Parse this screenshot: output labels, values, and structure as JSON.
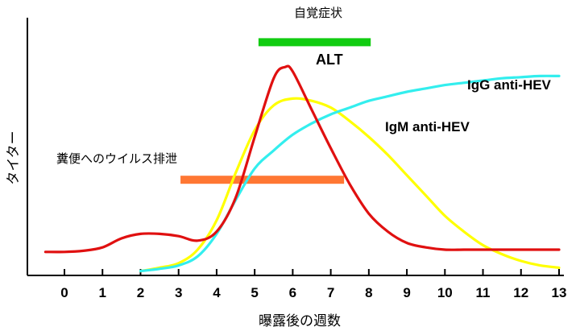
{
  "chart_data": {
    "type": "line",
    "xlabel": "曝露後の週数",
    "ylabel": "タイター",
    "xlim": [
      -1,
      13
    ],
    "ylim": [
      0,
      100
    ],
    "x_ticks": [
      0,
      1,
      2,
      3,
      4,
      5,
      6,
      7,
      8,
      9,
      10,
      11,
      12,
      13
    ],
    "series": [
      {
        "name": "ALT",
        "color": "#e01010",
        "points": [
          [
            -0.5,
            9
          ],
          [
            0,
            9
          ],
          [
            0.5,
            9.5
          ],
          [
            1,
            11
          ],
          [
            1.5,
            15
          ],
          [
            2,
            17
          ],
          [
            2.5,
            17
          ],
          [
            3,
            16
          ],
          [
            3.5,
            14
          ],
          [
            4,
            18
          ],
          [
            4.5,
            33
          ],
          [
            5,
            60
          ],
          [
            5.5,
            86
          ],
          [
            5.8,
            91
          ],
          [
            6,
            89
          ],
          [
            6.5,
            72
          ],
          [
            7,
            55
          ],
          [
            7.5,
            39
          ],
          [
            8,
            26
          ],
          [
            8.5,
            18
          ],
          [
            9,
            13
          ],
          [
            9.5,
            11
          ],
          [
            10,
            10
          ],
          [
            10.5,
            10
          ],
          [
            11,
            10
          ],
          [
            12,
            10
          ],
          [
            13,
            10
          ]
        ]
      },
      {
        "name": "IgM anti-HEV",
        "color": "#ffff00",
        "points": [
          [
            2,
            0.5
          ],
          [
            2.5,
            2
          ],
          [
            3,
            4
          ],
          [
            3.5,
            10
          ],
          [
            4,
            23
          ],
          [
            4.5,
            44
          ],
          [
            5,
            63
          ],
          [
            5.5,
            74
          ],
          [
            6,
            77
          ],
          [
            6.5,
            76
          ],
          [
            7,
            73
          ],
          [
            7.5,
            67
          ],
          [
            8,
            60
          ],
          [
            8.5,
            52
          ],
          [
            9,
            43
          ],
          [
            9.5,
            34
          ],
          [
            10,
            25
          ],
          [
            10.5,
            18
          ],
          [
            11,
            12
          ],
          [
            11.5,
            8
          ],
          [
            12,
            5
          ],
          [
            12.5,
            3
          ],
          [
            13,
            2
          ]
        ]
      },
      {
        "name": "IgG anti-HEV",
        "color": "#33eeee",
        "points": [
          [
            2,
            0.5
          ],
          [
            2.5,
            1.5
          ],
          [
            3,
            3
          ],
          [
            3.5,
            7
          ],
          [
            4,
            17
          ],
          [
            4.5,
            32
          ],
          [
            5,
            46
          ],
          [
            5.5,
            54
          ],
          [
            6,
            61
          ],
          [
            6.5,
            66
          ],
          [
            7,
            70
          ],
          [
            7.5,
            73
          ],
          [
            8,
            76
          ],
          [
            8.5,
            78
          ],
          [
            9,
            80
          ],
          [
            9.5,
            81.5
          ],
          [
            10,
            83
          ],
          [
            10.5,
            84
          ],
          [
            11,
            85
          ],
          [
            11.5,
            86
          ],
          [
            12,
            86.5
          ],
          [
            12.5,
            87
          ],
          [
            13,
            87
          ]
        ]
      }
    ],
    "periods": [
      {
        "label": "自覚症状",
        "start": 5.1,
        "end": 8.05,
        "level": 102,
        "color": "#11cc11"
      },
      {
        "label": "糞便へのウイルス排泄",
        "start": 3.05,
        "end": 7.35,
        "level": 41,
        "color": "#ff7733"
      }
    ],
    "legend": "inline labels beside each curve",
    "grid": false
  }
}
